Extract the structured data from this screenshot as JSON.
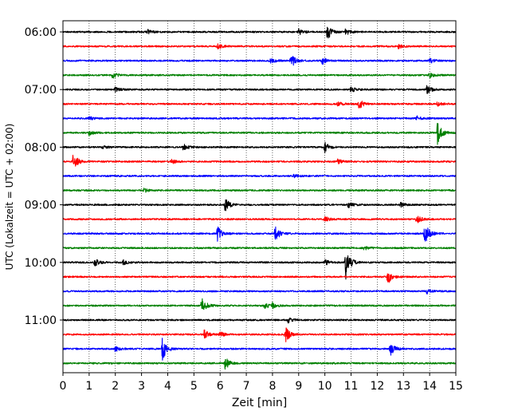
{
  "chart_data": {
    "type": "line",
    "title": "",
    "xlabel": "Zeit  [min]",
    "ylabel": "UTC (Lokalzeit = UTC + 02:00)",
    "xlim": [
      0,
      15
    ],
    "x_ticks": [
      0,
      1,
      2,
      3,
      4,
      5,
      6,
      7,
      8,
      9,
      10,
      11,
      12,
      13,
      14,
      15
    ],
    "y_tick_labels": [
      "06:00",
      "07:00",
      "08:00",
      "09:00",
      "10:00",
      "11:00"
    ],
    "y_tick_rows": [
      0,
      4,
      8,
      12,
      16,
      20
    ],
    "row_minutes": 15,
    "color_cycle": [
      "#000000",
      "#ff0000",
      "#0000ff",
      "#008000"
    ],
    "grid": "vertical dotted at each minute",
    "series": [
      {
        "start": "06:00",
        "events": [
          {
            "t": 10.1,
            "amp": 0.9
          },
          {
            "t": 10.8,
            "amp": 0.4
          },
          {
            "t": 9.0,
            "amp": 0.35
          },
          {
            "t": 3.2,
            "amp": 0.3
          }
        ]
      },
      {
        "start": "06:15",
        "events": [
          {
            "t": 5.9,
            "amp": 0.3
          },
          {
            "t": 12.8,
            "amp": 0.25
          }
        ]
      },
      {
        "start": "06:30",
        "events": [
          {
            "t": 8.7,
            "amp": 0.9
          },
          {
            "t": 7.9,
            "amp": 0.35
          },
          {
            "t": 9.9,
            "amp": 0.4
          },
          {
            "t": 14.0,
            "amp": 0.3
          }
        ]
      },
      {
        "start": "06:45",
        "events": [
          {
            "t": 1.9,
            "amp": 0.35
          },
          {
            "t": 14.0,
            "amp": 0.3
          }
        ]
      },
      {
        "start": "07:00",
        "events": [
          {
            "t": 13.9,
            "amp": 0.5
          },
          {
            "t": 11.0,
            "amp": 0.35
          },
          {
            "t": 2.0,
            "amp": 0.25
          }
        ]
      },
      {
        "start": "07:15",
        "events": [
          {
            "t": 11.3,
            "amp": 0.55
          },
          {
            "t": 10.5,
            "amp": 0.25
          },
          {
            "t": 14.3,
            "amp": 0.25
          }
        ]
      },
      {
        "start": "07:30",
        "events": [
          {
            "t": 1.0,
            "amp": 0.2
          },
          {
            "t": 13.5,
            "amp": 0.25
          }
        ]
      },
      {
        "start": "07:45",
        "events": [
          {
            "t": 14.3,
            "amp": 1.3
          },
          {
            "t": 1.0,
            "amp": 0.3
          }
        ]
      },
      {
        "start": "08:00",
        "events": [
          {
            "t": 10.0,
            "amp": 0.6
          },
          {
            "t": 4.6,
            "amp": 0.35
          },
          {
            "t": 1.5,
            "amp": 0.2
          }
        ]
      },
      {
        "start": "08:15",
        "events": [
          {
            "t": 0.4,
            "amp": 1.0
          },
          {
            "t": 4.1,
            "amp": 0.3
          },
          {
            "t": 10.5,
            "amp": 0.25
          }
        ]
      },
      {
        "start": "08:30",
        "events": [
          {
            "t": 8.8,
            "amp": 0.2
          }
        ]
      },
      {
        "start": "08:45",
        "events": [
          {
            "t": 3.1,
            "amp": 0.2
          }
        ]
      },
      {
        "start": "09:00",
        "events": [
          {
            "t": 6.2,
            "amp": 0.9
          },
          {
            "t": 10.9,
            "amp": 0.3
          },
          {
            "t": 12.9,
            "amp": 0.25
          }
        ]
      },
      {
        "start": "09:15",
        "events": [
          {
            "t": 13.5,
            "amp": 0.5
          },
          {
            "t": 10.0,
            "amp": 0.3
          }
        ]
      },
      {
        "start": "09:30",
        "events": [
          {
            "t": 13.8,
            "amp": 1.5
          },
          {
            "t": 5.9,
            "amp": 0.8
          },
          {
            "t": 8.1,
            "amp": 0.9
          }
        ]
      },
      {
        "start": "09:45",
        "events": [
          {
            "t": 11.5,
            "amp": 0.25
          }
        ]
      },
      {
        "start": "10:00",
        "events": [
          {
            "t": 10.8,
            "amp": 1.9
          },
          {
            "t": 1.2,
            "amp": 0.45
          },
          {
            "t": 10.0,
            "amp": 0.35
          },
          {
            "t": 2.3,
            "amp": 0.25
          }
        ]
      },
      {
        "start": "10:15",
        "events": [
          {
            "t": 12.4,
            "amp": 0.8
          }
        ]
      },
      {
        "start": "10:30",
        "events": [
          {
            "t": 13.9,
            "amp": 0.25
          }
        ]
      },
      {
        "start": "10:45",
        "events": [
          {
            "t": 5.3,
            "amp": 0.9
          },
          {
            "t": 7.7,
            "amp": 0.35
          },
          {
            "t": 8.0,
            "amp": 0.3
          }
        ]
      },
      {
        "start": "11:00",
        "events": [
          {
            "t": 8.6,
            "amp": 0.3
          }
        ]
      },
      {
        "start": "11:15",
        "events": [
          {
            "t": 8.5,
            "amp": 0.9
          },
          {
            "t": 5.4,
            "amp": 0.5
          },
          {
            "t": 6.0,
            "amp": 0.3
          }
        ]
      },
      {
        "start": "11:30",
        "events": [
          {
            "t": 3.8,
            "amp": 1.3
          },
          {
            "t": 12.5,
            "amp": 0.8
          },
          {
            "t": 2.0,
            "amp": 0.3
          }
        ]
      },
      {
        "start": "11:45",
        "events": [
          {
            "t": 6.2,
            "amp": 0.7
          }
        ]
      }
    ]
  }
}
